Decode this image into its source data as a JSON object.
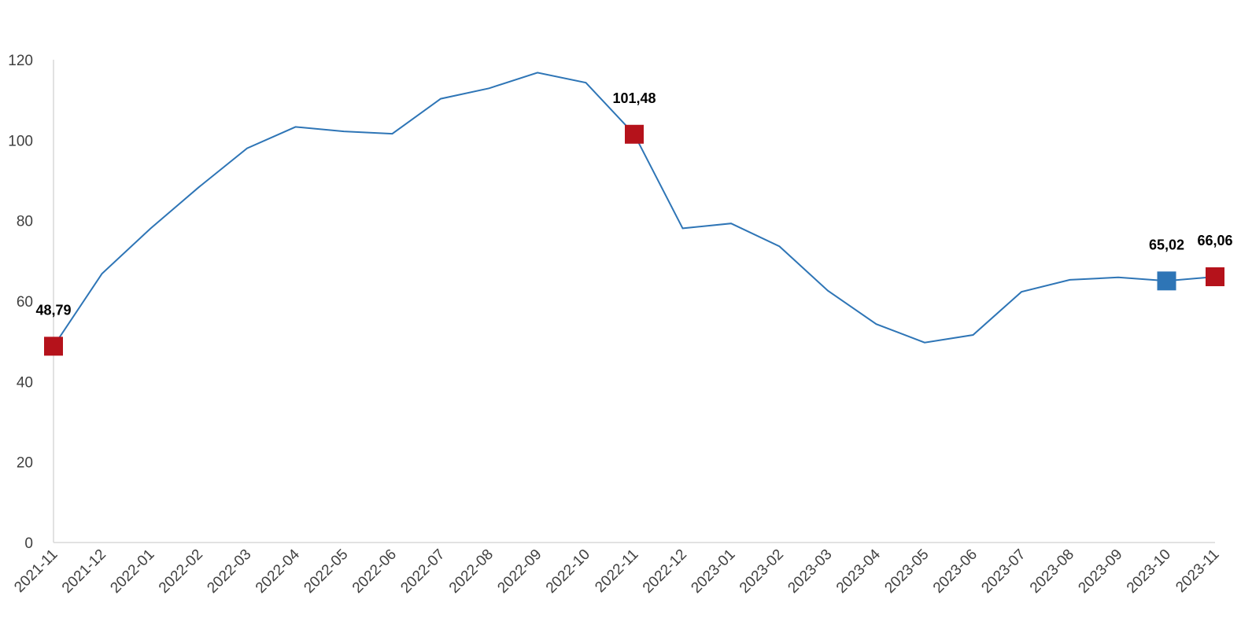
{
  "chart_data": {
    "type": "line",
    "title": "",
    "xlabel": "",
    "ylabel": "",
    "ylim": [
      0,
      120
    ],
    "yticks": [
      "0",
      "20",
      "40",
      "60",
      "80",
      "100",
      "120"
    ],
    "grid": false,
    "legend": "none",
    "categories": [
      "2021-11",
      "2021-12",
      "2022-01",
      "2022-02",
      "2022-03",
      "2022-04",
      "2022-05",
      "2022-06",
      "2022-07",
      "2022-08",
      "2022-09",
      "2022-10",
      "2022-11",
      "2022-12",
      "2023-01",
      "2023-02",
      "2023-03",
      "2023-04",
      "2023-05",
      "2023-06",
      "2023-07",
      "2023-08",
      "2023-09",
      "2023-10",
      "2023-11"
    ],
    "series": [
      {
        "values": [
          48.79,
          66.8,
          78.0,
          88.3,
          98.0,
          103.3,
          102.2,
          101.6,
          110.3,
          112.9,
          116.8,
          114.3,
          101.48,
          78.1,
          79.3,
          73.6,
          62.6,
          54.3,
          49.7,
          51.6,
          62.3,
          65.3,
          65.9,
          65.02,
          66.06
        ],
        "color": "#2e75b6"
      }
    ],
    "highlights": [
      {
        "category": "2021-11",
        "value": 48.79,
        "label": "48,79",
        "color": "#b5121b"
      },
      {
        "category": "2022-11",
        "value": 101.48,
        "label": "101,48",
        "color": "#b5121b"
      },
      {
        "category": "2023-10",
        "value": 65.02,
        "label": "65,02",
        "color": "#2e75b6"
      },
      {
        "category": "2023-11",
        "value": 66.06,
        "label": "66,06",
        "color": "#b5121b"
      }
    ]
  }
}
